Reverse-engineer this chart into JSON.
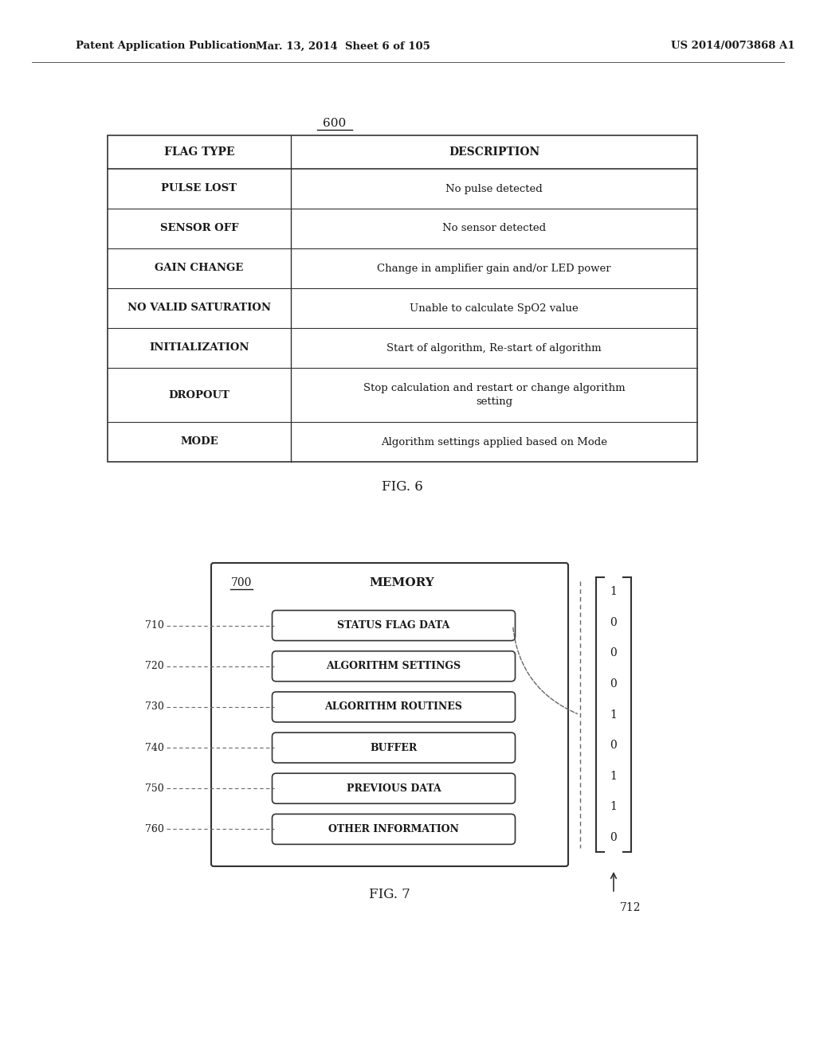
{
  "bg_color": "#ffffff",
  "header_left": "Patent Application Publication",
  "header_mid": "Mar. 13, 2014  Sheet 6 of 105",
  "header_right": "US 2014/0073868 A1",
  "fig6_label": "600",
  "fig6_caption": "FIG. 6",
  "table_headers": [
    "FLAG TYPE",
    "DESCRIPTION"
  ],
  "table_rows": [
    [
      "PULSE LOST",
      "No pulse detected"
    ],
    [
      "SENSOR OFF",
      "No sensor detected"
    ],
    [
      "GAIN CHANGE",
      "Change in amplifier gain and/or LED power"
    ],
    [
      "NO VALID SATURATION",
      "Unable to calculate SpO2 value"
    ],
    [
      "INITIALIZATION",
      "Start of algorithm, Re-start of algorithm"
    ],
    [
      "DROPOUT",
      "Stop calculation and restart or change algorithm\nsetting"
    ],
    [
      "MODE",
      "Algorithm settings applied based on Mode"
    ]
  ],
  "fig7_label": "700",
  "fig7_title": "MEMORY",
  "fig7_caption": "FIG. 7",
  "memory_items": [
    {
      "label": "710",
      "text": "STATUS FLAG DATA"
    },
    {
      "label": "720",
      "text": "ALGORITHM SETTINGS"
    },
    {
      "label": "730",
      "text": "ALGORITHM ROUTINES"
    },
    {
      "label": "740",
      "text": "BUFFER"
    },
    {
      "label": "750",
      "text": "PREVIOUS DATA"
    },
    {
      "label": "760",
      "text": "OTHER INFORMATION"
    }
  ],
  "binary_values": [
    "1",
    "0",
    "0",
    "0",
    "1",
    "0",
    "1",
    "1",
    "0"
  ],
  "binary_label": "712"
}
